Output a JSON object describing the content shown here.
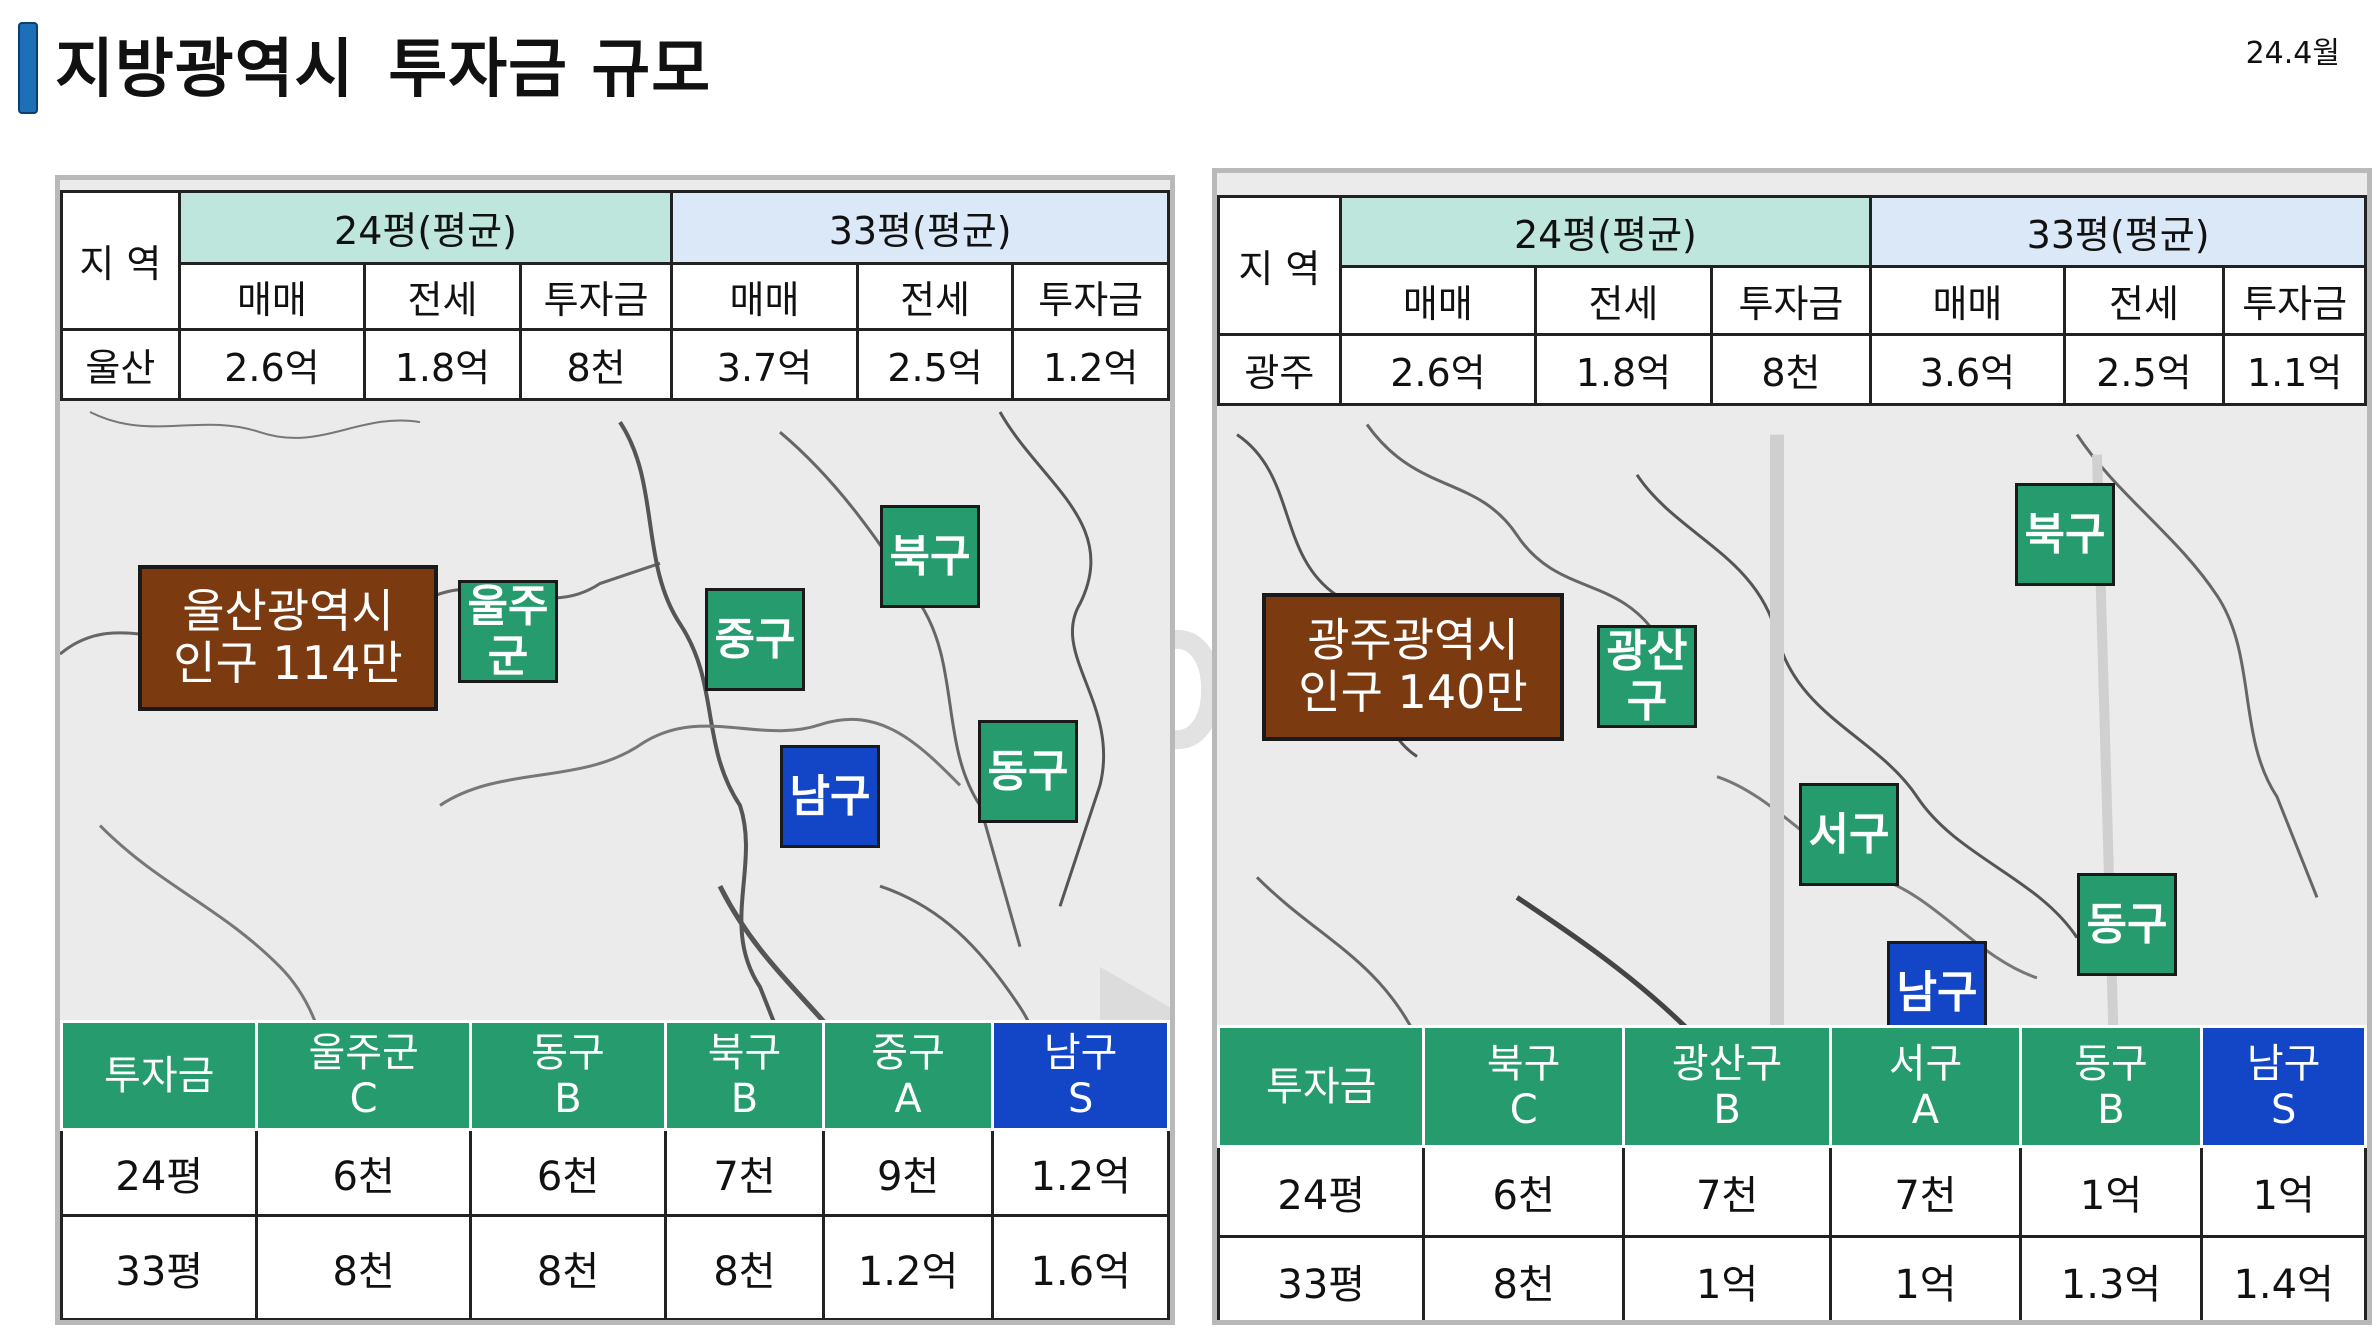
{
  "header": {
    "title_part1": "지방광역시",
    "title_part2": "투자금 규모",
    "date": "24.4월"
  },
  "left": {
    "top_table": {
      "region_header": "지 역",
      "group24": "24평(평균)",
      "group33": "33평(평균)",
      "cols": [
        "매매",
        "전세",
        "투자금",
        "매매",
        "전세",
        "투자금"
      ],
      "region": "울산",
      "values": [
        "2.6억",
        "1.8억",
        "8천",
        "3.7억",
        "2.5억",
        "1.2억"
      ]
    },
    "city_label": {
      "line1": "울산광역시",
      "line2": "인구 114만"
    },
    "districts": {
      "ulju": {
        "line1": "울주",
        "line2": "군"
      },
      "buk": "북구",
      "jung": "중구",
      "dong": "동구",
      "nam": "남구"
    },
    "bottom_table": {
      "label": "투자금",
      "headers": [
        {
          "name": "울주군",
          "grade": "C"
        },
        {
          "name": "동구",
          "grade": "B"
        },
        {
          "name": "북구",
          "grade": "B"
        },
        {
          "name": "중구",
          "grade": "A"
        },
        {
          "name": "남구",
          "grade": "S"
        }
      ],
      "rows": [
        {
          "label": "24평",
          "values": [
            "6천",
            "6천",
            "7천",
            "9천",
            "1.2억"
          ]
        },
        {
          "label": "33평",
          "values": [
            "8천",
            "8천",
            "8천",
            "1.2억",
            "1.6억"
          ]
        }
      ]
    }
  },
  "right": {
    "top_table": {
      "region_header": "지 역",
      "group24": "24평(평균)",
      "group33": "33평(평균)",
      "cols": [
        "매매",
        "전세",
        "투자금",
        "매매",
        "전세",
        "투자금"
      ],
      "region": "광주",
      "values": [
        "2.6억",
        "1.8억",
        "8천",
        "3.6억",
        "2.5억",
        "1.1억"
      ]
    },
    "city_label": {
      "line1": "광주광역시",
      "line2": "인구 140만"
    },
    "districts": {
      "gwangsan": {
        "line1": "광산",
        "line2": "구"
      },
      "buk": "북구",
      "seo": "서구",
      "dong": "동구",
      "nam": "남구"
    },
    "bottom_table": {
      "label": "투자금",
      "headers": [
        {
          "name": "북구",
          "grade": "C"
        },
        {
          "name": "광산구",
          "grade": "B"
        },
        {
          "name": "서구",
          "grade": "A"
        },
        {
          "name": "동구",
          "grade": "B"
        },
        {
          "name": "남구",
          "grade": "S"
        }
      ],
      "rows": [
        {
          "label": "24평",
          "values": [
            "6천",
            "7천",
            "7천",
            "1억",
            "1억"
          ]
        },
        {
          "label": "33평",
          "values": [
            "8천",
            "1억",
            "1억",
            "1.3억",
            "1.4억"
          ]
        }
      ]
    }
  },
  "watermark": "월급쟁이부자들",
  "colors": {
    "green": "#259b6e",
    "blue": "#1346c6",
    "brown": "#7b3a10",
    "mint": "#bfe6dc",
    "lightblue": "#dbe8f7",
    "accent": "#1d6fb8"
  }
}
